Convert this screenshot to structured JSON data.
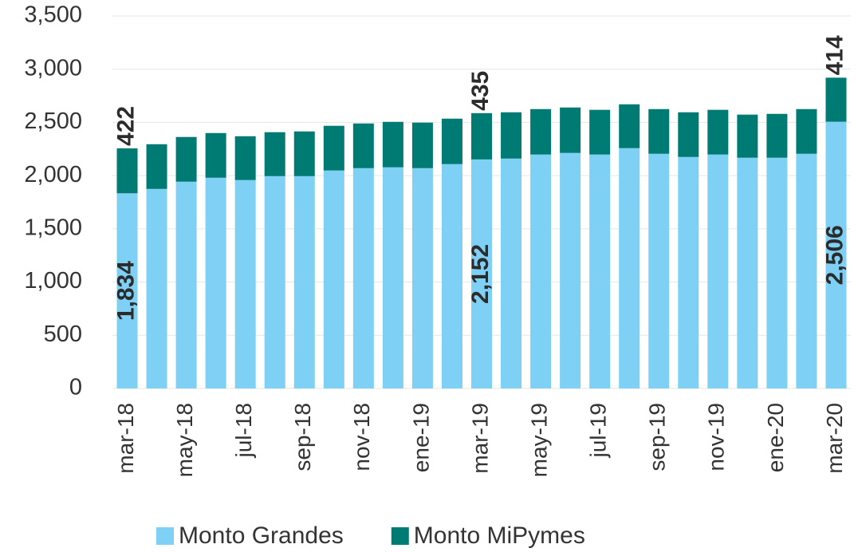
{
  "chart_data": {
    "type": "bar",
    "stacked": true,
    "categories": [
      "mar-18",
      null,
      "may-18",
      null,
      "jul-18",
      null,
      "sep-18",
      null,
      "nov-18",
      null,
      "ene-19",
      null,
      "mar-19",
      null,
      "may-19",
      null,
      "jul-19",
      null,
      "sep-19",
      null,
      "nov-19",
      null,
      "ene-20",
      null,
      "mar-20"
    ],
    "series": [
      {
        "name": "Monto Grandes",
        "color": "#7fd0f5",
        "values": [
          1834,
          1875,
          1943,
          1980,
          1958,
          1995,
          1995,
          2048,
          2070,
          2078,
          2070,
          2108,
          2152,
          2160,
          2198,
          2213,
          2198,
          2258,
          2205,
          2175,
          2198,
          2168,
          2168,
          2205,
          2506
        ],
        "value_labels": [
          "1,834",
          null,
          null,
          null,
          null,
          null,
          null,
          null,
          null,
          null,
          null,
          null,
          "2,152",
          null,
          null,
          null,
          null,
          null,
          null,
          null,
          null,
          null,
          null,
          null,
          "2,506"
        ]
      },
      {
        "name": "Monto MiPymes",
        "color": "#007b73",
        "values": [
          422,
          420,
          420,
          420,
          412,
          413,
          420,
          420,
          420,
          427,
          428,
          427,
          435,
          435,
          427,
          427,
          420,
          412,
          420,
          420,
          420,
          405,
          412,
          420,
          414
        ],
        "value_labels": [
          "422",
          null,
          null,
          null,
          null,
          null,
          null,
          null,
          null,
          null,
          null,
          null,
          "435",
          null,
          null,
          null,
          null,
          null,
          null,
          null,
          null,
          null,
          null,
          null,
          "414"
        ]
      }
    ],
    "ylim": [
      0,
      3500
    ],
    "yticks": [
      0,
      500,
      {
        "value": 1000,
        "label": "1,000"
      },
      {
        "value": 1500,
        "label": "1,500"
      },
      {
        "value": 2000,
        "label": "2,000"
      },
      {
        "value": 2500,
        "label": "2,500"
      },
      {
        "value": 3000,
        "label": "3,000"
      },
      {
        "value": 3500,
        "label": "3,500"
      }
    ],
    "grid": true
  }
}
